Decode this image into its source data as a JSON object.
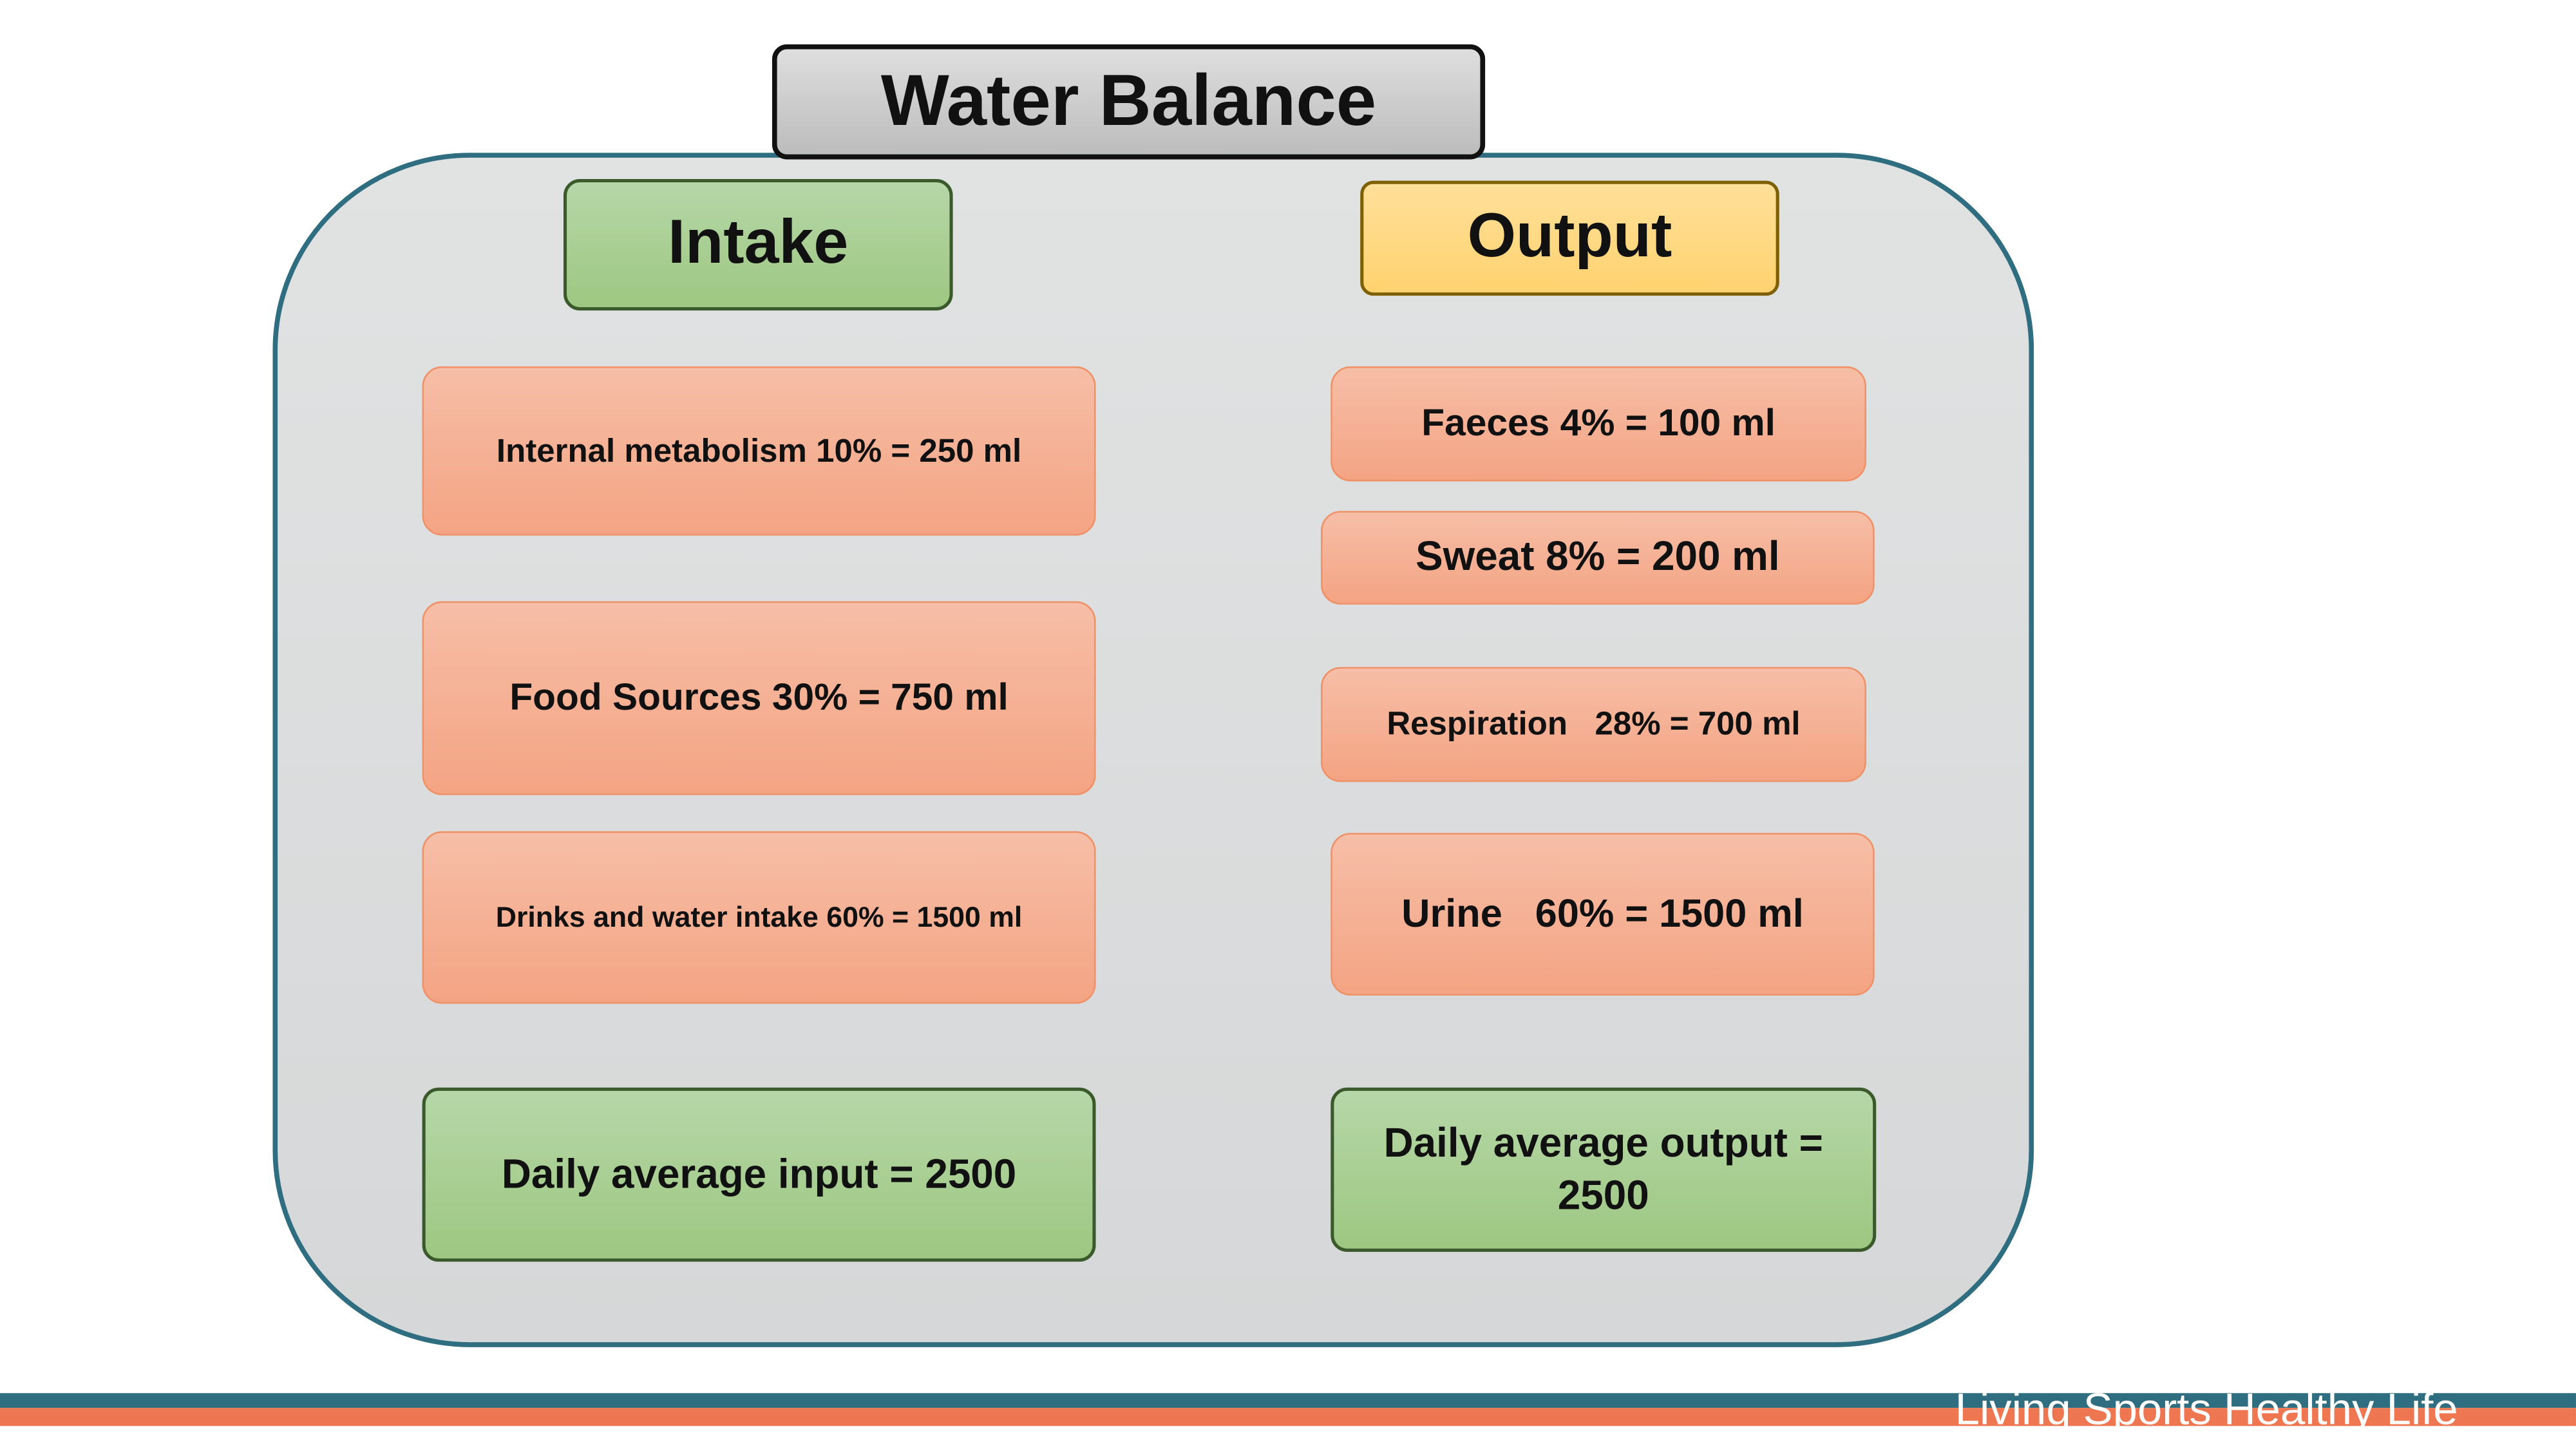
{
  "title": "Water Balance",
  "intake": {
    "heading": "Intake",
    "items": [
      "Internal metabolism 10% = 250 ml",
      "Food Sources 30% = 750 ml",
      "Drinks and water intake 60% = 1500 ml"
    ],
    "total": "Daily average input = 2500"
  },
  "output": {
    "heading": "Output",
    "items": [
      "Faeces 4% = 100 ml",
      "Sweat 8% = 200 ml",
      "Respiration   28% = 700 ml",
      "Urine   60% = 1500 ml"
    ],
    "total": "Daily average output = 2500"
  },
  "footer": "Living Sports Healthy Life"
}
